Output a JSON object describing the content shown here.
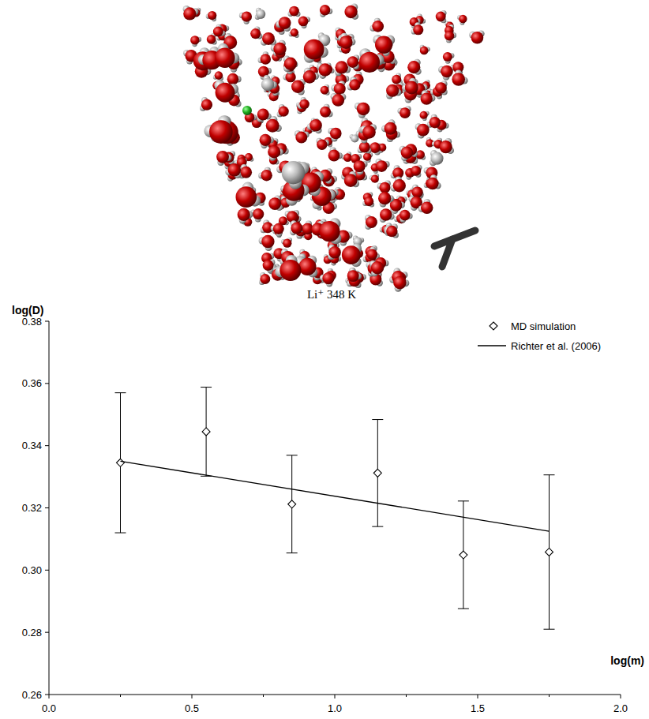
{
  "chart_data": {
    "type": "scatter",
    "title": "Li⁺ 348 K",
    "x_label": "log(m)",
    "y_label": "log(D)",
    "xlim": [
      0,
      2
    ],
    "ylim": [
      0.26,
      0.38
    ],
    "xticks": [
      {
        "value": 0,
        "label": "0.0"
      },
      0.5,
      {
        "value": 1,
        "label": "1.0"
      },
      1.5,
      {
        "value": 2,
        "label": "2.0"
      }
    ],
    "yticks": [
      0.26,
      0.28,
      {
        "value": 0.3,
        "label": "0.30"
      },
      0.32,
      0.34,
      0.36,
      0.38
    ],
    "grid": false,
    "legend": "upper right",
    "series": [
      {
        "name": "MD simulation",
        "type": "scatter",
        "marker": "diamond",
        "color": "#000000",
        "x": [
          0.25,
          0.55,
          0.85,
          1.15,
          1.45,
          1.75
        ],
        "values": [
          0.3345,
          0.3445,
          0.3212,
          0.3312,
          0.3049,
          0.3058
        ],
        "errors": [
          0.0225,
          0.0143,
          0.0157,
          0.0172,
          0.0173,
          0.0248
        ]
      },
      {
        "name": "Richter et al. (2006)",
        "type": "line",
        "line_style": "solid",
        "color": "#000000",
        "x": [
          0.25,
          1.75
        ],
        "values": [
          0.335,
          0.3125
        ]
      }
    ]
  }
}
